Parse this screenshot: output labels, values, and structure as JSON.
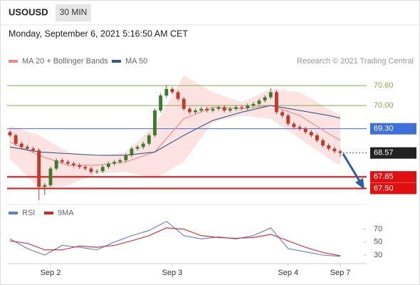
{
  "header": {
    "symbol": "USOUSD",
    "timeframe": "30 MIN",
    "datetime": "Monday, September 6, 2021 5:16:50 AM CET"
  },
  "chart_data": [
    {
      "type": "candlestick",
      "source": "Research © 2021 Trading Central",
      "categories": [
        null,
        null,
        null,
        null,
        null,
        null,
        null,
        "Sep 2",
        null,
        null,
        null,
        null,
        null,
        null,
        null,
        null,
        null,
        null,
        null,
        null,
        null,
        null,
        null,
        null,
        null,
        null,
        null,
        null,
        "Sep 3",
        null,
        null,
        null,
        null,
        null,
        null,
        null,
        null,
        null,
        null,
        null,
        null,
        null,
        null,
        null,
        null,
        null,
        null,
        null,
        "Sep 4",
        null,
        null,
        null,
        null,
        null,
        null,
        null,
        null,
        "Sep 7"
      ],
      "open": [
        69.2,
        69.1,
        68.85,
        68.75,
        68.7,
        68.65,
        67.55,
        67.6,
        68.1,
        68.35,
        68.3,
        68.25,
        68.2,
        68.15,
        68.1,
        68.0,
        68.02,
        68.15,
        68.25,
        68.3,
        68.35,
        68.5,
        68.7,
        68.75,
        68.85,
        69.1,
        69.85,
        70.3,
        70.5,
        70.4,
        70.2,
        69.9,
        69.8,
        69.85,
        69.9,
        69.85,
        69.9,
        69.95,
        69.85,
        69.9,
        69.95,
        69.92,
        70.0,
        70.05,
        70.15,
        70.25,
        70.4,
        69.8,
        69.7,
        69.45,
        69.35,
        69.3,
        69.2,
        69.1,
        68.95,
        68.8,
        68.7,
        68.62
      ],
      "high": [
        69.26,
        69.16,
        68.91,
        68.81,
        68.76,
        68.71,
        67.66,
        68.16,
        68.41,
        68.41,
        68.36,
        68.31,
        68.26,
        68.21,
        68.16,
        68.08,
        68.21,
        68.31,
        68.36,
        68.41,
        68.56,
        68.76,
        68.81,
        68.91,
        69.16,
        69.91,
        70.36,
        70.62,
        70.56,
        70.46,
        70.26,
        69.96,
        69.91,
        69.96,
        69.96,
        69.96,
        70.01,
        70.01,
        69.96,
        70.01,
        70.01,
        70.06,
        70.11,
        70.21,
        70.31,
        70.52,
        70.46,
        69.86,
        69.76,
        69.51,
        69.41,
        69.36,
        69.26,
        69.16,
        69.01,
        68.86,
        68.76,
        68.68
      ],
      "low": [
        69.04,
        68.79,
        68.69,
        68.64,
        68.59,
        67.15,
        67.3,
        67.54,
        68.04,
        68.24,
        68.19,
        68.14,
        68.09,
        68.04,
        67.94,
        67.94,
        67.96,
        68.09,
        68.19,
        68.24,
        68.29,
        68.44,
        68.64,
        68.69,
        68.79,
        69.04,
        69.79,
        70.24,
        70.34,
        70.14,
        69.84,
        69.74,
        69.74,
        69.79,
        69.79,
        69.79,
        69.84,
        69.79,
        69.79,
        69.84,
        69.86,
        69.86,
        69.94,
        69.99,
        70.09,
        70.19,
        69.74,
        69.64,
        69.39,
        69.29,
        69.24,
        69.14,
        69.04,
        68.89,
        68.74,
        68.64,
        68.56,
        68.45
      ],
      "close": [
        69.1,
        68.85,
        68.75,
        68.7,
        68.65,
        67.55,
        67.6,
        68.1,
        68.35,
        68.3,
        68.25,
        68.2,
        68.15,
        68.1,
        68.0,
        68.02,
        68.15,
        68.25,
        68.3,
        68.35,
        68.5,
        68.7,
        68.75,
        68.85,
        69.1,
        69.85,
        70.3,
        70.5,
        70.4,
        70.2,
        69.9,
        69.8,
        69.85,
        69.9,
        69.85,
        69.9,
        69.95,
        69.85,
        69.9,
        69.95,
        69.92,
        70.0,
        70.05,
        70.15,
        70.25,
        70.4,
        69.8,
        69.7,
        69.45,
        69.35,
        69.3,
        69.2,
        69.1,
        68.95,
        68.8,
        68.7,
        68.62,
        68.57
      ],
      "up_color": "#3d7a2e",
      "down_color": "#c0392b",
      "series": [
        {
          "name": "MA 20 + Bollinger Bands",
          "color": "#f08a8a",
          "x": [
            0,
            5,
            10,
            15,
            20,
            25,
            30,
            35,
            40,
            45,
            50,
            55,
            57
          ],
          "values": [
            68.9,
            68.5,
            68.2,
            68.2,
            68.3,
            68.6,
            69.6,
            69.95,
            69.9,
            70.0,
            69.7,
            69.15,
            68.95
          ]
        },
        {
          "name": "MA 50",
          "color": "#2e5c8a",
          "x": [
            0,
            5,
            10,
            15,
            20,
            25,
            30,
            35,
            40,
            45,
            50,
            55,
            57
          ],
          "values": [
            68.75,
            68.6,
            68.55,
            68.5,
            68.5,
            68.6,
            69.1,
            69.55,
            69.8,
            70.0,
            69.85,
            69.7,
            69.62
          ]
        }
      ],
      "bands": {
        "color": "#fde2e2",
        "upper": [
          69.4,
          69.1,
          68.6,
          68.45,
          68.6,
          69.4,
          70.9,
          70.4,
          70.1,
          70.5,
          70.4,
          69.9,
          69.7
        ],
        "lower": [
          68.4,
          67.5,
          67.6,
          67.95,
          68.0,
          67.8,
          68.3,
          69.5,
          69.7,
          69.6,
          69.0,
          68.4,
          68.2
        ]
      },
      "levels": [
        {
          "value": 70.6,
          "label": "70.60",
          "color": "#7cb342",
          "boxed": false,
          "line": "solid"
        },
        {
          "value": 70.0,
          "label": "70.00",
          "color": "#7cb342",
          "boxed": false,
          "line": "solid"
        },
        {
          "value": 69.3,
          "label": "69.30",
          "color": "#3f6fd8",
          "boxed": true,
          "line": "solid"
        },
        {
          "value": 68.57,
          "label": "68.57",
          "color": "#222222",
          "boxed": true,
          "line": "dotted"
        },
        {
          "value": 67.85,
          "label": "67.85",
          "color": "#e01010",
          "boxed": true,
          "line": "solid"
        },
        {
          "value": 67.5,
          "label": "67.50",
          "color": "#e01010",
          "boxed": true,
          "line": "solid"
        }
      ],
      "ylim": [
        67.06,
        71.14
      ]
    },
    {
      "type": "line",
      "series": [
        {
          "name": "RSI",
          "color": "#5b7fd4",
          "x": [
            0,
            3,
            6,
            9,
            12,
            15,
            18,
            21,
            24,
            27,
            30,
            33,
            36,
            39,
            42,
            45,
            48,
            51,
            54,
            57
          ],
          "values": [
            55,
            40,
            30,
            45,
            42,
            38,
            50,
            60,
            68,
            82,
            60,
            55,
            58,
            55,
            60,
            72,
            40,
            35,
            30,
            28
          ]
        },
        {
          "name": "9MA",
          "color": "#e02020",
          "x": [
            0,
            3,
            6,
            9,
            12,
            15,
            18,
            21,
            24,
            27,
            30,
            33,
            36,
            39,
            42,
            45,
            48,
            51,
            54,
            57
          ],
          "values": [
            52,
            48,
            38,
            38,
            44,
            42,
            45,
            52,
            60,
            72,
            70,
            60,
            57,
            56,
            57,
            62,
            52,
            42,
            34,
            29
          ]
        }
      ],
      "ylim": [
        19,
        85
      ],
      "yticks": [
        70,
        50,
        30
      ]
    }
  ]
}
